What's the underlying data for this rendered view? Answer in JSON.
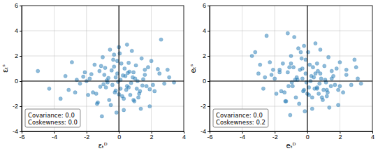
{
  "chart_data": [
    {
      "type": "scatter",
      "x_label": "εₜᴰ",
      "y_label": "εₜˢ",
      "color": "#1f77b4",
      "grid": true,
      "xlim": [
        -6,
        4
      ],
      "ylim": [
        -4,
        6
      ],
      "xticks": [
        -6,
        -4,
        -2,
        0,
        2,
        4
      ],
      "yticks": [
        -4,
        -2,
        0,
        2,
        4,
        6
      ],
      "annotations": [
        "Covariance: 0.0",
        "Coskewness: 0.0"
      ],
      "x": [
        -0.2,
        0.5,
        -1.1,
        1.3,
        0.1,
        -0.6,
        0.9,
        -1.8,
        2.1,
        -0.3,
        0.7,
        -0.9,
        1.6,
        -2.4,
        0.3,
        -0.1,
        1.1,
        -1.4,
        0.4,
        -0.7,
        2.5,
        -3.1,
        0.0,
        1.8,
        -0.5,
        0.6,
        -1.2,
        0.2,
        1.4,
        -2.0,
        -5.0,
        -4.3,
        3.4,
        2.6,
        -3.6,
        3.0,
        -2.9,
        1.9,
        -1.6,
        0.8,
        -0.4,
        1.0,
        -0.8,
        0.15,
        -1.3,
        2.2,
        -0.05,
        0.55,
        -2.2,
        1.2,
        0.35,
        -1.0,
        1.7,
        -0.25,
        0.95,
        -1.7,
        0.05,
        2.8,
        -2.6,
        0.65,
        -0.15,
        1.5,
        -0.95,
        0.45,
        -1.5,
        0.25,
        1.25,
        -0.35,
        -3.3,
        2.4,
        0.75,
        -0.55,
        1.05,
        -1.9,
        0.1,
        -0.75,
        1.35,
        -0.45,
        0.85,
        -1.15,
        2.0,
        -2.1,
        0.3,
        -0.65,
        1.45,
        -0.2,
        0.6,
        -1.35,
        1.15,
        -0.85,
        0.0,
        1.9,
        -2.7,
        0.5,
        -0.1,
        3.1,
        -1.05,
        0.9,
        -0.3,
        1.6
      ],
      "values": [
        0.3,
        -0.4,
        1.2,
        -0.8,
        0.1,
        -1.5,
        0.7,
        0.2,
        -0.3,
        2.1,
        -1.1,
        0.5,
        0.9,
        -0.2,
        -2.3,
        1.6,
        -0.6,
        -1.0,
        0.4,
        -0.1,
        0.6,
        -0.7,
        2.7,
        1.1,
        -1.9,
        -0.5,
        0.8,
        -1.2,
        1.8,
        0.0,
        0.8,
        -0.6,
        -0.1,
        3.3,
        -1.4,
        0.9,
        1.5,
        -2.0,
        -0.9,
        2.4,
        -0.3,
        0.2,
        -0.5,
        1.4,
        -1.7,
        -0.8,
        -0.05,
        0.65,
        0.35,
        -1.3,
        1.0,
        1.9,
        -0.4,
        -0.9,
        -1.6,
        0.55,
        2.2,
        -0.2,
        0.1,
        0.75,
        -2.5,
        0.15,
        -0.25,
        -0.7,
        1.3,
        0.45,
        -1.0,
        1.7,
        0.4,
        0.95,
        -0.15,
        2.5,
        1.25,
        -1.1,
        -0.6,
        0.05,
        -2.2,
        0.85,
        0.3,
        -0.45,
        1.6,
        0.7,
        -1.4,
        0.25,
        -0.35,
        -0.75,
        1.45,
        -1.8,
        0.0,
        1.05,
        -1.05,
        -0.65,
        -0.9,
        2.9,
        0.6,
        0.3,
        -2.8,
        -1.5,
        1.15,
        0.5
      ]
    },
    {
      "type": "scatter",
      "x_label": "eₜᴰ",
      "y_label": "eₜˢ",
      "color": "#1f77b4",
      "grid": true,
      "xlim": [
        -6,
        4
      ],
      "ylim": [
        -4,
        6
      ],
      "xticks": [
        -6,
        -4,
        -2,
        0,
        2,
        4
      ],
      "yticks": [
        -4,
        -2,
        0,
        2,
        4,
        6
      ],
      "annotations": [
        "Covariance: 0.0",
        "Coskewness: 0.2"
      ],
      "x": [
        -0.3,
        0.6,
        -1.0,
        1.2,
        0.2,
        -0.7,
        0.8,
        -1.7,
        2.0,
        -0.4,
        0.7,
        -1.2,
        1.5,
        -2.3,
        0.3,
        -0.1,
        1.0,
        -1.4,
        0.4,
        -0.6,
        2.4,
        -2.9,
        -0.2,
        1.8,
        -0.5,
        0.6,
        -1.1,
        0.1,
        1.3,
        -2.0,
        -3.4,
        -3.2,
        3.3,
        2.9,
        -2.5,
        3.0,
        -1.2,
        1.9,
        -1.6,
        0.8,
        -0.8,
        1.1,
        -0.9,
        0.15,
        -1.3,
        2.2,
        -0.05,
        0.5,
        -2.2,
        1.2,
        0.35,
        -1.0,
        1.7,
        -0.25,
        0.95,
        -1.7,
        0.05,
        2.7,
        -2.6,
        0.65,
        -0.15,
        1.5,
        -0.95,
        0.45,
        -1.5,
        0.25,
        1.25,
        -0.35,
        -3.0,
        2.4,
        0.75,
        -0.55,
        1.05,
        -1.9,
        0.1,
        -0.75,
        1.35,
        -0.45,
        0.85,
        -1.15,
        2.0,
        -2.1,
        0.3,
        -0.65,
        1.45,
        -0.2,
        0.6,
        -1.35,
        1.15,
        -0.85,
        0.0,
        1.9,
        -2.7,
        0.5,
        -0.1,
        3.1,
        -1.05,
        0.9,
        -0.3,
        1.6
      ],
      "values": [
        0.2,
        -0.5,
        1.4,
        -0.7,
        0.0,
        -1.3,
        0.6,
        0.9,
        -0.4,
        2.3,
        -1.0,
        0.7,
        0.8,
        1.5,
        -2.2,
        1.7,
        -0.7,
        -0.9,
        0.3,
        0.1,
        0.5,
        1.3,
        2.8,
        1.0,
        -1.8,
        -0.6,
        1.1,
        -1.1,
        1.9,
        0.2,
        2.0,
        2.3,
        -0.2,
        1.7,
        3.6,
        1.1,
        3.8,
        -1.9,
        -0.8,
        2.5,
        3.5,
        0.1,
        -0.4,
        1.3,
        -1.6,
        -0.9,
        -0.1,
        0.6,
        0.5,
        -1.2,
        1.1,
        2.0,
        -0.3,
        -0.8,
        -1.5,
        0.7,
        2.3,
        -0.3,
        0.3,
        0.8,
        -2.4,
        0.2,
        -0.1,
        -0.6,
        1.4,
        0.4,
        -0.9,
        1.8,
        0.6,
        0.9,
        -0.2,
        2.6,
        1.2,
        -1.0,
        -0.5,
        0.1,
        -2.1,
        0.9,
        0.2,
        -0.4,
        1.5,
        0.9,
        -1.3,
        0.3,
        -0.4,
        -0.7,
        1.4,
        -1.6,
        -0.1,
        1.1,
        -1.0,
        -0.7,
        -0.6,
        3.0,
        0.6,
        0.2,
        -2.7,
        -1.3,
        1.0,
        0.4
      ]
    }
  ]
}
